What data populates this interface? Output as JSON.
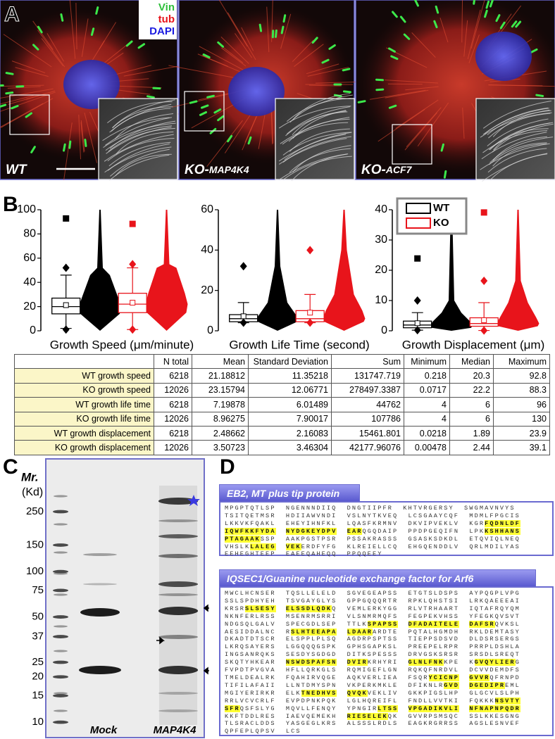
{
  "panel_a": {
    "label": "A",
    "legend": [
      "Vin",
      "tub",
      "DAPI"
    ],
    "panels": [
      {
        "name": "WT"
      },
      {
        "name": "KO-",
        "sub": "MAP4K4"
      },
      {
        "name": "KO-",
        "sub": "ACF7"
      }
    ]
  },
  "panel_b_label": "B",
  "chart_data": [
    {
      "type": "box",
      "xlabel": "Growth Speed (μm/minute)",
      "ylim": [
        0,
        100
      ],
      "yticks": [
        0,
        20,
        40,
        60,
        80,
        100
      ],
      "series": [
        {
          "color": "#000000",
          "whisker_low": 2,
          "q1": 14,
          "median": 20,
          "q3": 27,
          "whisker_high": 46,
          "mean": 21.2,
          "p1": 1,
          "p99": 52,
          "max": 92.8
        },
        {
          "color": "#e8141b",
          "whisker_low": 1,
          "q1": 15,
          "median": 22,
          "q3": 31,
          "whisker_high": 52,
          "mean": 23.2,
          "p1": 1,
          "p99": 55,
          "max": 88.3
        }
      ]
    },
    {
      "type": "box",
      "xlabel": "Growth Life Time (second)",
      "ylim": [
        0,
        60
      ],
      "yticks": [
        0,
        20,
        40,
        60
      ],
      "series": [
        {
          "color": "#000000",
          "whisker_low": 4,
          "q1": 4.5,
          "median": 6,
          "q3": 8,
          "whisker_high": 14,
          "mean": 7.2,
          "p1": 4,
          "p99": 32
        },
        {
          "color": "#e8141b",
          "whisker_low": 4,
          "q1": 4.5,
          "median": 6,
          "q3": 10,
          "whisker_high": 18,
          "mean": 9,
          "p1": 4,
          "p99": 40
        }
      ]
    },
    {
      "type": "box",
      "xlabel": "Growth Displacement (μm)",
      "ylim": [
        0,
        40
      ],
      "yticks": [
        0,
        10,
        20,
        30,
        40
      ],
      "legend": "top-left",
      "series": [
        {
          "name": "WT",
          "color": "#000000",
          "whisker_low": 0.2,
          "q1": 1,
          "median": 1.9,
          "q3": 3.2,
          "whisker_high": 6,
          "mean": 2.5,
          "p1": 0.2,
          "p99": 10,
          "max": 23.9
        },
        {
          "name": "KO",
          "color": "#e8141b",
          "whisker_low": 0.1,
          "q1": 1.5,
          "median": 2.4,
          "q3": 4.3,
          "whisker_high": 9.3,
          "mean": 3.5,
          "p1": 0.1,
          "p99": 16.5,
          "max": 39.1
        }
      ]
    }
  ],
  "table": {
    "columns": [
      "N total",
      "Mean",
      "Standard Deviation",
      "Sum",
      "Minimum",
      "Median",
      "Maximum"
    ],
    "rows": [
      [
        "WT growth speed",
        "6218",
        "21.18812",
        "11.35218",
        "131747.719",
        "0.218",
        "20.3",
        "92.8"
      ],
      [
        "KO growth speed",
        "12026",
        "23.15794",
        "12.06771",
        "278497.3387",
        "0.0717",
        "22.2",
        "88.3"
      ],
      [
        "WT growth life time",
        "6218",
        "7.19878",
        "6.01489",
        "44762",
        "4",
        "6",
        "96"
      ],
      [
        "KO growth life time",
        "12026",
        "8.96275",
        "7.90017",
        "107786",
        "4",
        "6",
        "130"
      ],
      [
        "WT growth displacement",
        "6218",
        "2.48662",
        "2.16083",
        "15461.801",
        "0.0218",
        "1.89",
        "23.9"
      ],
      [
        "KO growth displacement",
        "12026",
        "3.50723",
        "3.46304",
        "42177.96076",
        "0.00478",
        "2.44",
        "39.1"
      ]
    ]
  },
  "panel_c": {
    "label": "C",
    "mr": "Mr.",
    "unit": "(Kd)",
    "markers": [
      250,
      150,
      100,
      75,
      50,
      37,
      25,
      20,
      15,
      10
    ],
    "lanes": [
      "Mock",
      "MAP4K4"
    ]
  },
  "panel_d": {
    "label": "D",
    "proteins": [
      {
        "title": "EB2, MT plus tip protein",
        "lines": [
          [
            "MPGPTQTLSP NGENNNDIIQ DNGTIIPFR KHTVRGERSY SWGMAVNVYS"
          ],
          [
            "TSITQETMSR HDIIAWVNDI VSLNYTKVEQ LCSGAAYCQF MDMLFPGCIS"
          ],
          [
            "LKKVKFQAKL EHEYIHNFKL LQASFKRMNV DKVIPVEKLV KGR",
            {
              "hl": "FQDNLDF"
            }
          ],
          [
            {
              "hl": "IQWFKKFYDA"
            },
            " ",
            {
              "hl": "NYDGKEYDPV"
            },
            " ",
            {
              "hl": "EAR"
            },
            "QGQDAIP PPDPGEQIFN LPK",
            {
              "hl": "KSHHANS"
            }
          ],
          [
            {
              "hl": "PTAGAAK"
            },
            "SSP AAKPGSTPSR PSSAKRASSS GSASKSDKDL ETQVIQLNEQ"
          ],
          [
            "VHSLK",
            {
              "hl": "LALEG"
            },
            " ",
            {
              "hl": "VEK"
            },
            "ERDFYFG KLREIELLCQ EHGQENDDLV QRLMDILYAS"
          ],
          [
            "EEHEGHTEEP EAEEQAHEQQ PPQQEEY"
          ]
        ]
      },
      {
        "title": "IQSEC1/Guanine nucleotide exchange factor for Arf6",
        "lines": [
          [
            "MWCLHCNSER TQSLLELELD SGVEGEAPSS ETGTSLDSPS AYPQGPLVPG"
          ],
          [
            "SSLSPDHYEH TSVGAYGLYS GPPGQQQRTR RPKLQHSTSI LRKQAEEEAI"
          ],
          [
            "KRSR",
            {
              "hl": "SLSESY"
            },
            " ",
            {
              "hl": "ELSSDLQDK"
            },
            "Q VEMLERKYGG RLVTRHAART IQTAFRQYQM"
          ],
          [
            "NKNFERLRSS MSENRMSRRI VLSNMRMQFS FEGPEKVHSS YFEGKQVSVT"
          ],
          [
            "NDGSQLGALV SPECGDLSEP TTLK",
            {
              "hl": "SPAPSS"
            },
            " ",
            {
              "hl": "DFADAITELE"
            },
            " ",
            {
              "hl": "DAFSR"
            },
            "QVKSL"
          ],
          [
            "AESIDDALNC R",
            {
              "hl": "SLHTEEAPA"
            },
            " ",
            {
              "hl": "LDAAR"
            },
            "ARDTE PQTALHGMDH RKLDEMTASY"
          ],
          [
            "DKADTDTSCR ELSPPLPLSQ AGDRPSPTSS TIEPPSDSVD DLDSRSERGS"
          ],
          [
            "LKRQSAYERS LGGQQQGSPK GPHSGAPKSL PREEPELRPR PRRPLDSHLA"
          ],
          [
            "INGSANRQKS SESDYSGDGD DITKSPESSS DRVGSKSRSR SRSDLSREQT"
          ],
          [
            "SKQTYHKEAR ",
            {
              "hl": "NSWDSPAFSN"
            },
            " ",
            {
              "hl": "DVIR"
            },
            "KRHYRI ",
            {
              "hl": "GLNLFNK"
            },
            "KPE K",
            {
              "hl": "GVQYLIER"
            },
            "G"
          ],
          [
            "FVPDTPVGVA HFLLQRKGLS RQMIGEFLGN RQKQFNRDVL DCVVDEMDFS"
          ],
          [
            "TMELDEALRK FQAHIRVQGE AQKVERLIEA FSQR",
            {
              "hl": "YCICNP"
            },
            " ",
            {
              "hl": "GVVR"
            },
            "QFRNPD"
          ],
          [
            "TIFILAFAII LLNTDMYSPN VKPERKMKLE DFIKNLR",
            {
              "hl": "GVD"
            },
            " ",
            {
              "hl": "DGEDIPR"
            },
            "EML"
          ],
          [
            "MGIYERIRKR ELK",
            {
              "hl": "TNEDHVS"
            },
            " ",
            {
              "hl": "QVQK"
            },
            "VEKLIV GKKPIGSLHP GLGCVLSLPH"
          ],
          [
            "RRLVCVCRLF EVPDPNKPQK LGLHQREIFL FNDLLVVTKI FQKKK",
            {
              "hl": "NSVTY"
            }
          ],
          [
            {
              "hl": "SFR"
            },
            "QSFSLYG MQVLLFENQY YPNGIR",
            {
              "hl": "LTSS"
            },
            " ",
            {
              "hl": "VPGADIKVLI"
            },
            " ",
            {
              "hl": "NFNAPNPQDR"
            }
          ],
          [
            "KKFTDDLRES IAEVQEMEKH ",
            {
              "hl": "RIESELEK"
            },
            "QK GVVRPSMSQC SSLKKESGNG"
          ],
          [
            "TLSRACLDDS YASGEGLKRS ALSSSLRDLS EAGKRGRRSS AGSLESNVEF"
          ],
          [
            "QPFEPLQPSV LCS"
          ]
        ]
      }
    ]
  }
}
